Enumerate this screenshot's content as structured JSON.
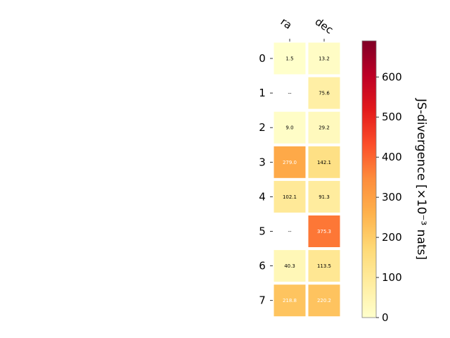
{
  "chart_data": {
    "type": "heatmap",
    "columns": [
      "ra",
      "dec"
    ],
    "rows": [
      "0",
      "1",
      "2",
      "3",
      "4",
      "5",
      "6",
      "7"
    ],
    "values": [
      [
        1.5,
        13.2
      ],
      [
        null,
        75.6
      ],
      [
        9.0,
        29.2
      ],
      [
        279.0,
        142.1
      ],
      [
        102.1,
        91.3
      ],
      [
        null,
        375.3
      ],
      [
        40.3,
        113.5
      ],
      [
        218.8,
        220.2
      ]
    ],
    "labels": [
      [
        "1.5",
        "13.2"
      ],
      [
        "--",
        "75.6"
      ],
      [
        "9.0",
        "29.2"
      ],
      [
        "279.0",
        "142.1"
      ],
      [
        "102.1",
        "91.3"
      ],
      [
        "--",
        "375.3"
      ],
      [
        "40.3",
        "113.5"
      ],
      [
        "218.8",
        "220.2"
      ]
    ],
    "colormap": "YlOrRd",
    "colorbar": {
      "label": "JS-divergence [×10⁻³ nats]",
      "range": [
        0,
        690
      ],
      "ticks": [
        0,
        100,
        200,
        300,
        400,
        500,
        600
      ],
      "tick_labels": [
        "0",
        "100",
        "200",
        "300",
        "400",
        "500",
        "600"
      ]
    },
    "colors": {
      "stops": [
        "#ffffcc",
        "#ffeda0",
        "#fed976",
        "#feb24c",
        "#fd8d3c",
        "#fc4e2a",
        "#e31a1c",
        "#bd0026",
        "#800026"
      ]
    }
  }
}
